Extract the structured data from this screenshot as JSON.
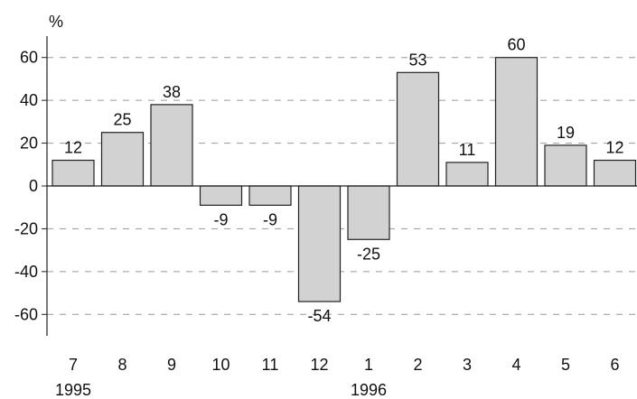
{
  "chart_data": {
    "type": "bar",
    "unit_label": "%",
    "categories": [
      "7",
      "8",
      "9",
      "10",
      "11",
      "12",
      "1",
      "2",
      "3",
      "4",
      "5",
      "6"
    ],
    "year_labels": [
      {
        "at_category": "7",
        "label": "1995"
      },
      {
        "at_category": "1",
        "label": "1996"
      }
    ],
    "values": [
      12,
      25,
      38,
      -9,
      -9,
      -54,
      -25,
      53,
      11,
      60,
      19,
      12
    ],
    "data_labels": [
      "12",
      "25",
      "38",
      "-9",
      "-9",
      "-54",
      "-25",
      "53",
      "11",
      "60",
      "19",
      "12"
    ],
    "yticks": [
      "60",
      "40",
      "20",
      "0",
      "-20",
      "-40",
      "-60"
    ],
    "ylim": [
      -70,
      70
    ],
    "grid": "dashed horizontal",
    "legend": "none",
    "colors": {
      "bar_fill": "#d2d2d2",
      "bar_stroke": "#222222",
      "grid": "#999999"
    }
  }
}
